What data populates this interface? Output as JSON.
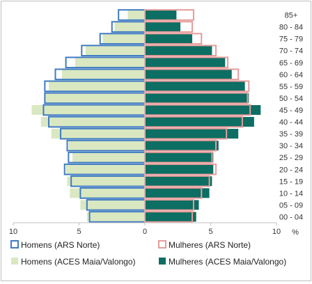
{
  "chart_data": {
    "type": "bar",
    "orientation": "horizontal",
    "title": "",
    "xlabel": "%",
    "ylabel": "",
    "categories": [
      "00 - 04",
      "05 - 09",
      "10 - 14",
      "15 - 19",
      "20 - 24",
      "25 - 29",
      "30 - 34",
      "35 - 39",
      "40 - 44",
      "45 - 49",
      "50 - 54",
      "55 - 59",
      "60 - 64",
      "65 - 69",
      "70 - 74",
      "75 - 79",
      "80 - 84",
      "85+"
    ],
    "x_ticks": [
      "10",
      "5",
      "0",
      "5",
      "10"
    ],
    "xlim": [
      -10,
      10
    ],
    "series": [
      {
        "name": "Homens (ACES Maia/Valongo)",
        "side": "left",
        "style": "filled",
        "color": "#d9e8c1",
        "values": [
          4.4,
          4.9,
          5.7,
          5.9,
          6.0,
          5.5,
          5.8,
          7.1,
          7.9,
          8.6,
          7.6,
          7.3,
          6.3,
          5.3,
          4.5,
          3.2,
          2.3,
          1.3
        ]
      },
      {
        "name": "Homens (ARS Norte)",
        "side": "left",
        "style": "outline",
        "color": "#3f7bc2",
        "values": [
          4.2,
          4.4,
          4.9,
          5.6,
          6.1,
          5.8,
          5.9,
          6.4,
          7.3,
          7.7,
          7.6,
          7.6,
          6.8,
          6.0,
          4.8,
          3.4,
          2.5,
          2.0
        ]
      },
      {
        "name": "Mulheres (ACES Maia/Valongo)",
        "side": "right",
        "style": "filled",
        "color": "#0d6e63",
        "values": [
          3.9,
          4.1,
          4.9,
          5.1,
          5.2,
          5.2,
          5.6,
          7.1,
          8.3,
          8.8,
          7.9,
          7.6,
          6.6,
          6.1,
          5.1,
          3.6,
          2.7,
          2.4
        ]
      },
      {
        "name": "Mulheres (ARS Norte)",
        "side": "right",
        "style": "outline",
        "color": "#e59c9a",
        "values": [
          3.6,
          3.7,
          4.3,
          4.9,
          5.4,
          5.1,
          5.4,
          6.2,
          7.4,
          8.0,
          7.8,
          7.9,
          7.1,
          6.3,
          5.4,
          4.3,
          3.6,
          3.7
        ]
      }
    ],
    "legend": {
      "position": "bottom",
      "items": [
        {
          "label": "Homens (ARS Norte)",
          "style": "outline",
          "color": "#3f7bc2"
        },
        {
          "label": "Mulheres (ARS Norte)",
          "style": "outline",
          "color": "#e59c9a"
        },
        {
          "label": "Homens (ACES Maia/Valongo)",
          "style": "filled",
          "color": "#d9e8c1"
        },
        {
          "label": "Mulheres (ACES Maia/Valongo)",
          "style": "filled",
          "color": "#0d6e63"
        }
      ]
    },
    "grid": false
  }
}
